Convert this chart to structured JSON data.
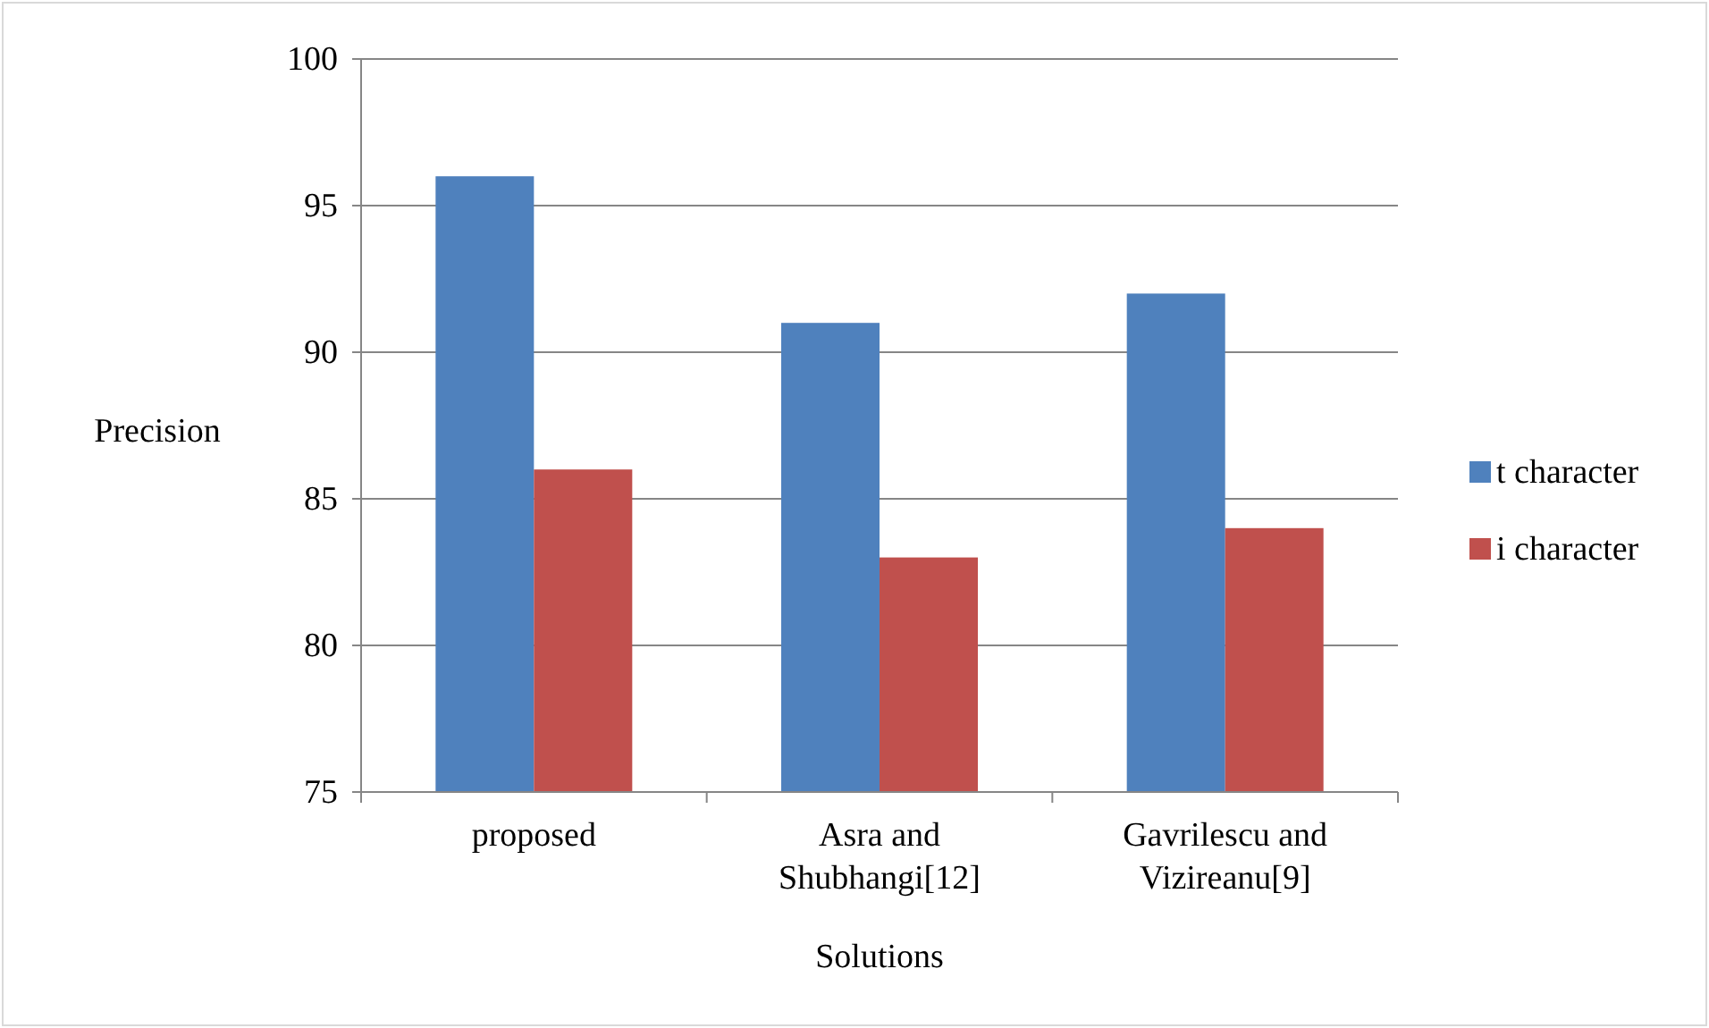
{
  "chart_data": {
    "type": "bar",
    "xlabel": "Solutions",
    "ylabel": "Precision",
    "categories": [
      "proposed",
      "Asra and Shubhangi[12]",
      "Gavrilescu and Vizireanu[9]"
    ],
    "series": [
      {
        "name": "t character",
        "color": "#4f81bd",
        "values": [
          96,
          91,
          92
        ]
      },
      {
        "name": "i character",
        "color": "#c0504d",
        "values": [
          86,
          83,
          84
        ]
      }
    ],
    "ylim": [
      75,
      100
    ],
    "yticks": [
      75,
      80,
      85,
      90,
      95,
      100
    ],
    "grid": "y",
    "legend": "right"
  }
}
